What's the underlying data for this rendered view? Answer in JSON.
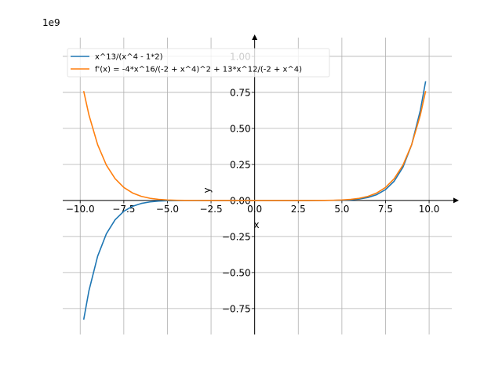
{
  "chart_data": {
    "type": "line",
    "title": "",
    "xlabel": "x",
    "ylabel": "y",
    "offset_text": "1e9",
    "xlim": [
      -11.0,
      11.3
    ],
    "ylim": [
      -0.93,
      1.13
    ],
    "x_ticks": [
      -10.0,
      -7.5,
      -5.0,
      -2.5,
      0.0,
      2.5,
      5.0,
      7.5,
      10.0
    ],
    "x_tick_labels": [
      "−10.0",
      "−7.5",
      "−5.0",
      "−2.5",
      "0.0",
      "2.5",
      "5.0",
      "7.5",
      "10.0"
    ],
    "y_ticks": [
      -0.75,
      -0.5,
      -0.25,
      0.0,
      0.25,
      0.5,
      0.75,
      1.0
    ],
    "y_tick_labels": [
      "−0.75",
      "−0.50",
      "−0.25",
      "0.00",
      "0.25",
      "0.50",
      "0.75",
      "1.00"
    ],
    "grid": true,
    "legend_position": "upper-left",
    "series": [
      {
        "name": "x^13/(x^4 - 1*2)",
        "color": "#1f77b4",
        "x": [
          -9.8,
          -9.5,
          -9.0,
          -8.5,
          -8.0,
          -7.5,
          -7.0,
          -6.5,
          -6.0,
          -5.5,
          -5.0,
          -4.5,
          -4.0,
          -3.0,
          -2.0,
          -1.0,
          0.0,
          1.0,
          2.0,
          3.0,
          4.0,
          4.5,
          5.0,
          5.5,
          6.0,
          6.5,
          7.0,
          7.5,
          8.0,
          8.5,
          9.0,
          9.5,
          9.8
        ],
        "y": [
          -0.827,
          -0.627,
          -0.387,
          -0.231,
          -0.134,
          -0.0751,
          -0.0404,
          -0.0208,
          -0.0101,
          -0.00464,
          -0.00195,
          -0.000759,
          -0.000262,
          -1.96e-05,
          0.0,
          0.0,
          0.0,
          0.0,
          0.0,
          1.96e-05,
          0.000262,
          0.000759,
          0.00195,
          0.00464,
          0.0101,
          0.0208,
          0.0404,
          0.0751,
          0.134,
          0.231,
          0.387,
          0.627,
          0.827
        ]
      },
      {
        "name": "f'(x) = -4*x^16/(-2 + x^4)^2 + 13*x^12/(-2 + x^4)",
        "color": "#ff7f0e",
        "x": [
          -9.8,
          -9.5,
          -9.0,
          -8.5,
          -8.0,
          -7.5,
          -7.0,
          -6.5,
          -6.0,
          -5.5,
          -5.0,
          -4.5,
          -4.0,
          -3.0,
          -2.0,
          -1.0,
          0.0,
          1.0,
          2.0,
          3.0,
          4.0,
          4.5,
          5.0,
          5.5,
          6.0,
          6.5,
          7.0,
          7.5,
          8.0,
          8.5,
          9.0,
          9.5,
          9.8
        ],
        "y": [
          0.759,
          0.594,
          0.387,
          0.245,
          0.151,
          0.0901,
          0.052,
          0.0288,
          0.0151,
          0.0076,
          0.00351,
          0.00151,
          0.000589,
          5.88e-05,
          0.0,
          0.0,
          0.0,
          0.0,
          0.0,
          5.88e-05,
          0.000589,
          0.00151,
          0.00351,
          0.0076,
          0.0151,
          0.0288,
          0.052,
          0.0901,
          0.151,
          0.245,
          0.387,
          0.594,
          0.759
        ]
      }
    ]
  }
}
